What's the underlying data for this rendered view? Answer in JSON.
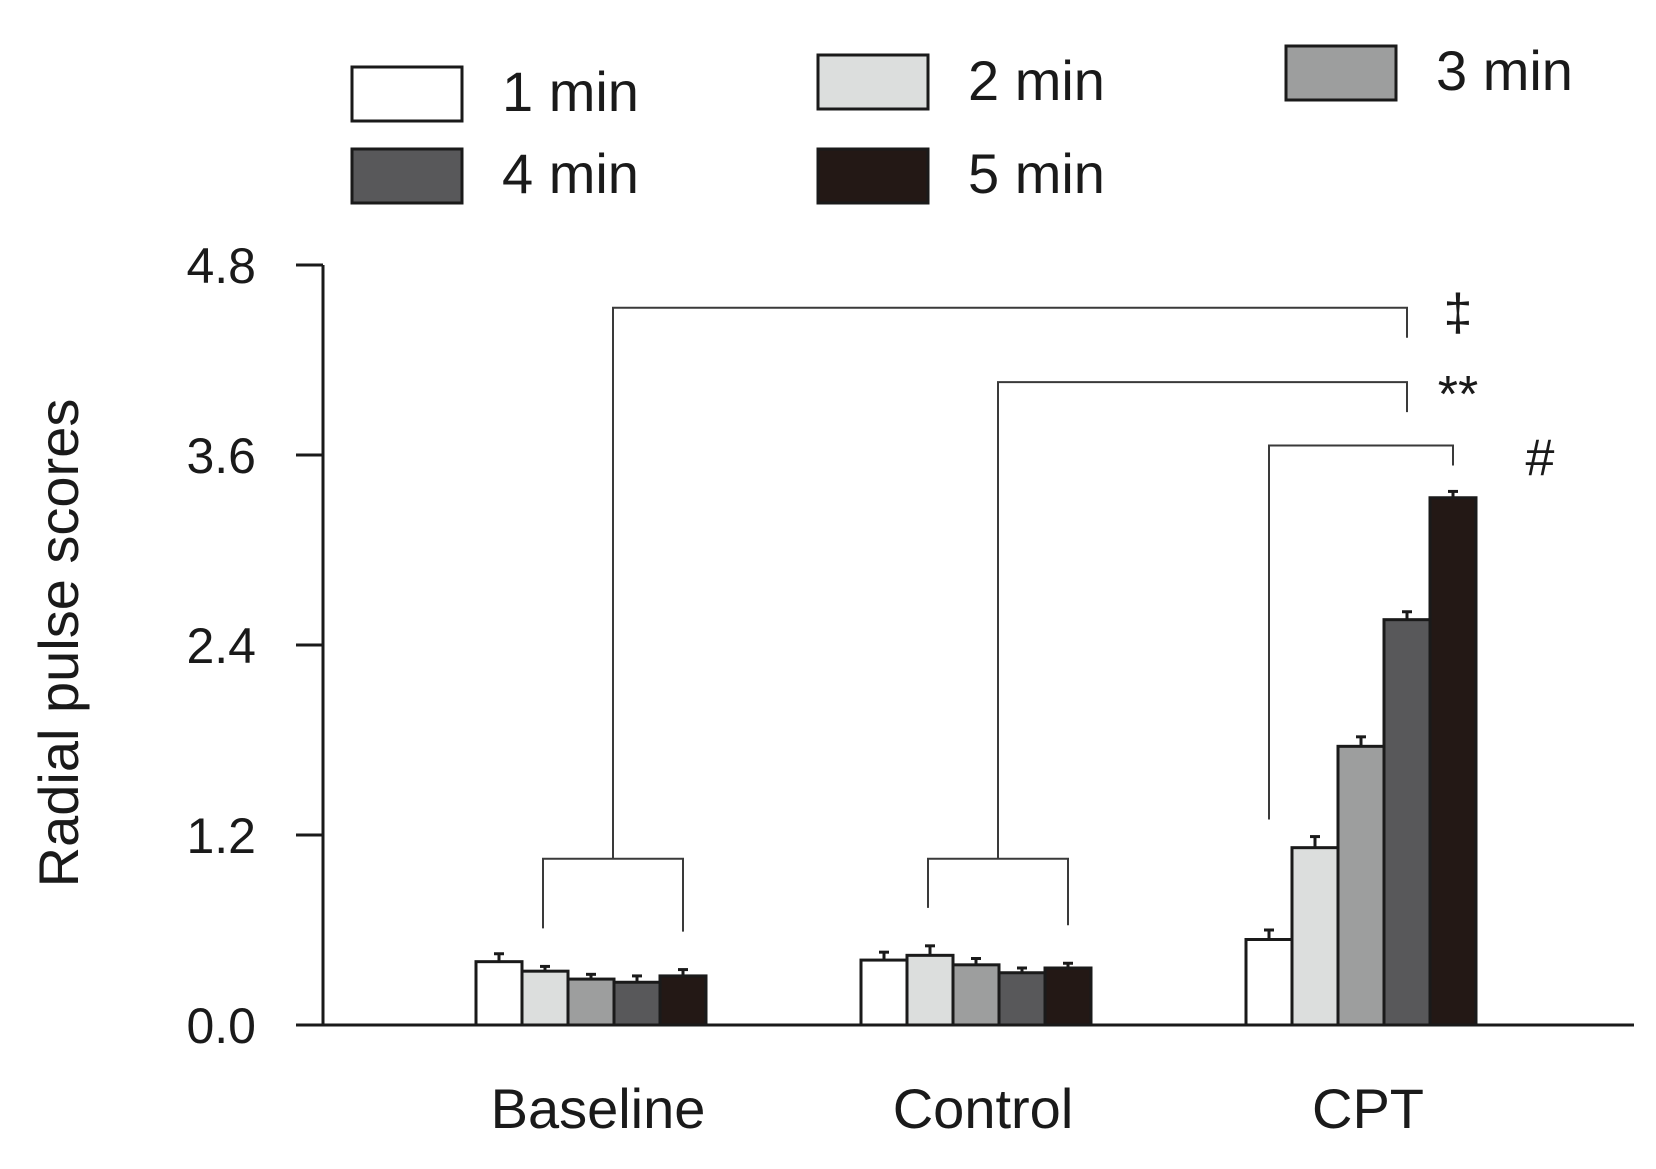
{
  "chart_data": {
    "type": "bar",
    "title": "",
    "xlabel": "",
    "ylabel": "Radial pulse scores",
    "ylim": [
      0,
      4.8
    ],
    "yticks": [
      "0.0",
      "1.2",
      "2.4",
      "3.6",
      "4.8"
    ],
    "ytick_values": [
      0,
      1.2,
      2.4,
      3.6,
      4.8
    ],
    "categories": [
      "Baseline",
      "Control",
      "CPT"
    ],
    "legend": "top",
    "series": [
      {
        "name": "1 min",
        "color": "#ffffff",
        "values": [
          0.4,
          0.41,
          0.54
        ],
        "errors": [
          0.05,
          0.05,
          0.06
        ]
      },
      {
        "name": "2 min",
        "color": "#dcdedd",
        "values": [
          0.34,
          0.44,
          1.12
        ],
        "errors": [
          0.03,
          0.06,
          0.07
        ]
      },
      {
        "name": "3 min",
        "color": "#9d9e9e",
        "values": [
          0.29,
          0.38,
          1.76
        ],
        "errors": [
          0.03,
          0.04,
          0.06
        ]
      },
      {
        "name": "4 min",
        "color": "#58585a",
        "values": [
          0.27,
          0.33,
          2.56
        ],
        "errors": [
          0.04,
          0.03,
          0.05
        ]
      },
      {
        "name": "5 min",
        "color": "#231815",
        "values": [
          0.31,
          0.36,
          3.33
        ],
        "errors": [
          0.04,
          0.03,
          0.04
        ]
      }
    ],
    "annotations": [
      {
        "label": "‡",
        "from": "Baseline",
        "to": "CPT 4 min",
        "level": 4.53
      },
      {
        "label": "**",
        "from": "Control",
        "to": "CPT 4 min",
        "level": 4.06
      },
      {
        "label": "#",
        "from": "CPT 1 min",
        "to": "CPT 5 min",
        "level": 3.66
      }
    ]
  }
}
